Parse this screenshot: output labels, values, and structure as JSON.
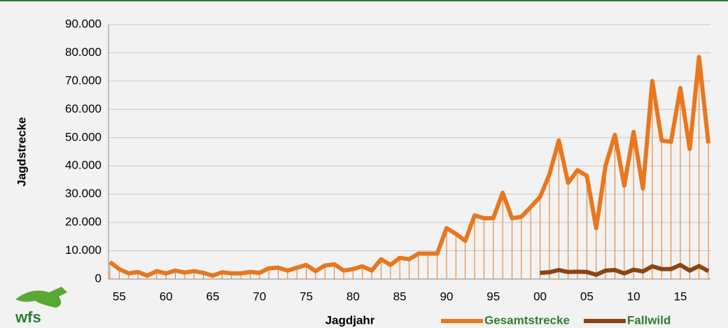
{
  "logo": "wfs",
  "chart_data": {
    "type": "line",
    "xlabel": "Jagdjahr",
    "ylabel": "Jagdstrecke",
    "categories": [
      null,
      "55",
      null,
      null,
      null,
      null,
      "60",
      null,
      null,
      null,
      null,
      "65",
      null,
      null,
      null,
      null,
      "70",
      null,
      null,
      null,
      null,
      "75",
      null,
      null,
      null,
      null,
      "80",
      null,
      null,
      null,
      null,
      "85",
      null,
      null,
      null,
      null,
      "90",
      null,
      null,
      null,
      null,
      "95",
      null,
      null,
      null,
      null,
      "00",
      null,
      null,
      null,
      null,
      "05",
      null,
      null,
      null,
      null,
      "10",
      null,
      null,
      null,
      null,
      "15",
      null,
      null,
      null
    ],
    "series": [
      {
        "name": "Gesamtstrecke",
        "color": "#e8771e",
        "drop_lines": true,
        "values": [
          6000,
          3500,
          2000,
          2500,
          1200,
          2800,
          2000,
          3000,
          2300,
          2800,
          2200,
          1200,
          2400,
          2000,
          2000,
          2500,
          2200,
          3800,
          4000,
          3000,
          4000,
          5000,
          2800,
          4800,
          5200,
          3000,
          3500,
          4500,
          3000,
          7000,
          5000,
          7500,
          7000,
          9000,
          9000,
          9000,
          18000,
          16000,
          13500,
          22500,
          21500,
          21500,
          30500,
          21500,
          22000,
          25500,
          29000,
          37000,
          49000,
          34000,
          38500,
          36500,
          18000,
          40000,
          51000,
          33000,
          52000,
          32000,
          70000,
          49000,
          48500,
          67500,
          46000,
          78500,
          48000
        ]
      },
      {
        "name": "Fallwild",
        "color": "#8b4513",
        "drop_lines": false,
        "values": [
          null,
          null,
          null,
          null,
          null,
          null,
          null,
          null,
          null,
          null,
          null,
          null,
          null,
          null,
          null,
          null,
          null,
          null,
          null,
          null,
          null,
          null,
          null,
          null,
          null,
          null,
          null,
          null,
          null,
          null,
          null,
          null,
          null,
          null,
          null,
          null,
          null,
          null,
          null,
          null,
          null,
          null,
          null,
          null,
          null,
          null,
          2200,
          2400,
          3200,
          2500,
          2600,
          2500,
          1500,
          3000,
          3200,
          2000,
          3300,
          2700,
          4500,
          3500,
          3500,
          5000,
          3000,
          4600,
          2800
        ]
      }
    ],
    "ylim": [
      0,
      90000
    ],
    "yticks": [
      0,
      {
        "value": 10000,
        "label": "10.000"
      },
      {
        "value": 20000,
        "label": "20.000"
      },
      {
        "value": 30000,
        "label": "30.000"
      },
      {
        "value": 40000,
        "label": "40.000"
      },
      {
        "value": 50000,
        "label": "50.000"
      },
      {
        "value": 60000,
        "label": "60.000"
      },
      {
        "value": 70000,
        "label": "70.000"
      },
      {
        "value": 80000,
        "label": "80.000"
      },
      {
        "value": 90000,
        "label": "90.000"
      }
    ],
    "grid": true,
    "legend": "bottom-right"
  }
}
